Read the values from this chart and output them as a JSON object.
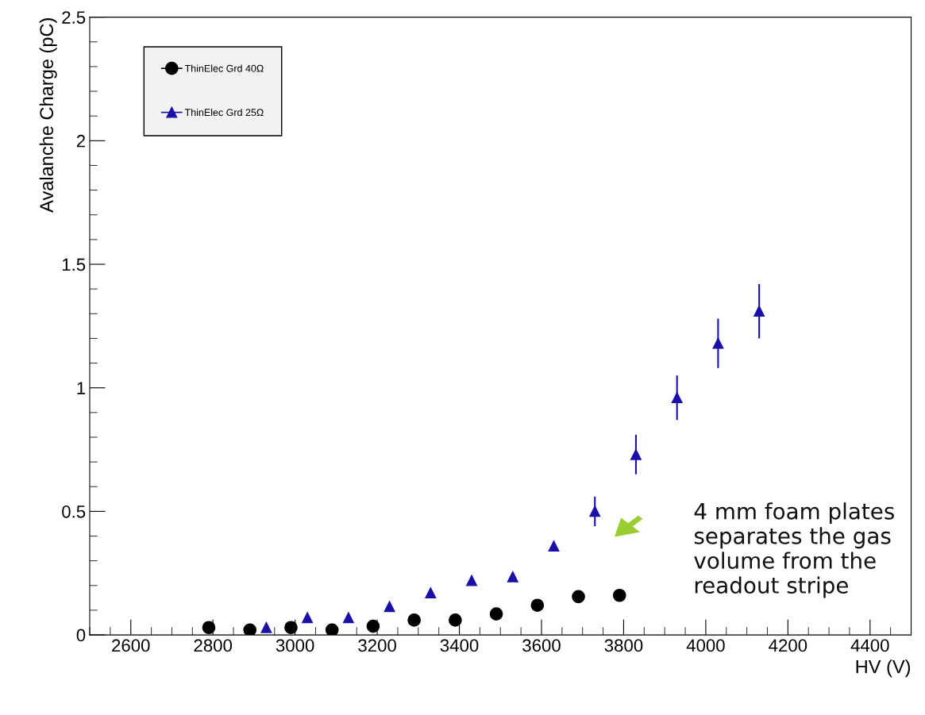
{
  "chart_data": {
    "type": "scatter",
    "xlabel": "HV (V)",
    "ylabel": "Avalanche Charge (pC)",
    "xlim": [
      2500,
      4500
    ],
    "xticks": [
      2600,
      2800,
      3000,
      3200,
      3400,
      3600,
      3800,
      4000,
      4200,
      4400
    ],
    "ylim": [
      0,
      2.5
    ],
    "yticks": [
      0,
      0.5,
      1,
      1.5,
      2,
      2.5
    ],
    "grid": false,
    "legend": "top left",
    "series": [
      {
        "name": "ThinElec Grd 40Ω",
        "color": "#000000",
        "marker": "circle",
        "x": [
          2790,
          2890,
          2990,
          3090,
          3190,
          3290,
          3390,
          3490,
          3590,
          3690,
          3790
        ],
        "values": [
          0.03,
          0.02,
          0.03,
          0.02,
          0.035,
          0.06,
          0.06,
          0.085,
          0.12,
          0.155,
          0.16
        ]
      },
      {
        "name": "ThinElec Grd 25Ω",
        "color": "#1a10a8",
        "marker": "triangle",
        "x": [
          2930,
          3030,
          3130,
          3230,
          3330,
          3430,
          3530,
          3630,
          3730,
          3830,
          3930,
          4030,
          4130
        ],
        "values": [
          0.03,
          0.07,
          0.07,
          0.115,
          0.17,
          0.22,
          0.235,
          0.36,
          0.5,
          0.73,
          0.96,
          1.18,
          1.31
        ],
        "errors": [
          null,
          null,
          null,
          null,
          null,
          null,
          null,
          null,
          0.06,
          0.08,
          0.09,
          0.1,
          0.11
        ]
      }
    ],
    "annotations": [
      "4 mm foam plates separates the gas volume from the readout stripe"
    ]
  }
}
